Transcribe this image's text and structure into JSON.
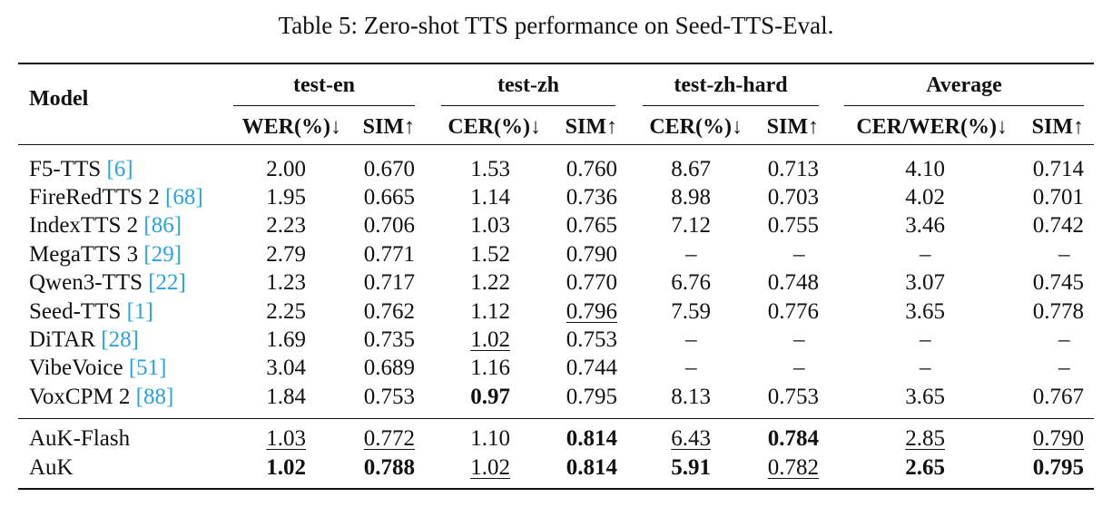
{
  "caption": "Table 5: Zero-shot TTS performance on Seed-TTS-Eval.",
  "header": {
    "model": "Model",
    "groups": [
      "test-en",
      "test-zh",
      "test-zh-hard",
      "Average"
    ],
    "metrics": [
      "WER(%)↓",
      "SIM↑",
      "CER(%)↓",
      "SIM↑",
      "CER(%)↓",
      "SIM↑",
      "CER/WER(%)↓",
      "SIM↑"
    ]
  },
  "rows": [
    {
      "name": "F5-TTS ",
      "cite": "[6]",
      "end": "",
      "cells": [
        {
          "v": "2.00"
        },
        {
          "v": "0.670"
        },
        {
          "v": "1.53"
        },
        {
          "v": "0.760"
        },
        {
          "v": "8.67"
        },
        {
          "v": "0.713"
        },
        {
          "v": "4.10"
        },
        {
          "v": "0.714"
        }
      ]
    },
    {
      "name": "FireRedTTS 2 ",
      "cite": "[68]",
      "end": "",
      "cells": [
        {
          "v": "1.95"
        },
        {
          "v": "0.665"
        },
        {
          "v": "1.14"
        },
        {
          "v": "0.736"
        },
        {
          "v": "8.98"
        },
        {
          "v": "0.703"
        },
        {
          "v": "4.02"
        },
        {
          "v": "0.701"
        }
      ]
    },
    {
      "name": "IndexTTS 2 ",
      "cite": "[86]",
      "end": "",
      "cells": [
        {
          "v": "2.23"
        },
        {
          "v": "0.706"
        },
        {
          "v": "1.03"
        },
        {
          "v": "0.765"
        },
        {
          "v": "7.12"
        },
        {
          "v": "0.755"
        },
        {
          "v": "3.46"
        },
        {
          "v": "0.742"
        }
      ]
    },
    {
      "name": "MegaTTS 3 ",
      "cite": "[29]",
      "end": "",
      "cells": [
        {
          "v": "2.79"
        },
        {
          "v": "0.771"
        },
        {
          "v": "1.52"
        },
        {
          "v": "0.790"
        },
        {
          "v": "–"
        },
        {
          "v": "–"
        },
        {
          "v": "–"
        },
        {
          "v": "–"
        }
      ]
    },
    {
      "name": "Qwen3-TTS ",
      "cite": "[22]",
      "end": "",
      "cells": [
        {
          "v": "1.23"
        },
        {
          "v": "0.717"
        },
        {
          "v": "1.22"
        },
        {
          "v": "0.770"
        },
        {
          "v": "6.76"
        },
        {
          "v": "0.748"
        },
        {
          "v": "3.07"
        },
        {
          "v": "0.745"
        }
      ]
    },
    {
      "name": "Seed-TTS ",
      "cite": "[1]",
      "end": "",
      "cells": [
        {
          "v": "2.25"
        },
        {
          "v": "0.762"
        },
        {
          "v": "1.12"
        },
        {
          "v": "0.796",
          "u": true
        },
        {
          "v": "7.59"
        },
        {
          "v": "0.776"
        },
        {
          "v": "3.65"
        },
        {
          "v": "0.778"
        }
      ]
    },
    {
      "name": "DiTAR ",
      "cite": "[28]",
      "end": "",
      "cells": [
        {
          "v": "1.69"
        },
        {
          "v": "0.735"
        },
        {
          "v": "1.02",
          "u": true
        },
        {
          "v": "0.753"
        },
        {
          "v": "–"
        },
        {
          "v": "–"
        },
        {
          "v": "–"
        },
        {
          "v": "–"
        }
      ]
    },
    {
      "name": "VibeVoice ",
      "cite": "[51]",
      "end": "",
      "cells": [
        {
          "v": "3.04"
        },
        {
          "v": "0.689"
        },
        {
          "v": "1.16"
        },
        {
          "v": "0.744"
        },
        {
          "v": "–"
        },
        {
          "v": "–"
        },
        {
          "v": "–"
        },
        {
          "v": "–"
        }
      ]
    },
    {
      "name": "VoxCPM 2 ",
      "cite": "[88]",
      "end": "",
      "cells": [
        {
          "v": "1.84"
        },
        {
          "v": "0.753"
        },
        {
          "v": "0.97",
          "b": true
        },
        {
          "v": "0.795"
        },
        {
          "v": "8.13"
        },
        {
          "v": "0.753"
        },
        {
          "v": "3.65"
        },
        {
          "v": "0.767"
        }
      ]
    },
    {
      "name": "AuK-Flash",
      "cite": "",
      "end": "",
      "cells": [
        {
          "v": "1.03",
          "u": true
        },
        {
          "v": "0.772",
          "u": true
        },
        {
          "v": "1.10"
        },
        {
          "v": "0.814",
          "b": true
        },
        {
          "v": "6.43",
          "u": true
        },
        {
          "v": "0.784",
          "b": true
        },
        {
          "v": "2.85",
          "u": true
        },
        {
          "v": "0.790",
          "u": true
        }
      ]
    },
    {
      "name": "AuK",
      "cite": "",
      "end": "",
      "cells": [
        {
          "v": "1.02",
          "b": true
        },
        {
          "v": "0.788",
          "b": true
        },
        {
          "v": "1.02",
          "u": true
        },
        {
          "v": "0.814",
          "b": true
        },
        {
          "v": "5.91",
          "b": true
        },
        {
          "v": "0.782",
          "u": true
        },
        {
          "v": "2.65",
          "b": true
        },
        {
          "v": "0.795",
          "b": true
        }
      ]
    }
  ]
}
